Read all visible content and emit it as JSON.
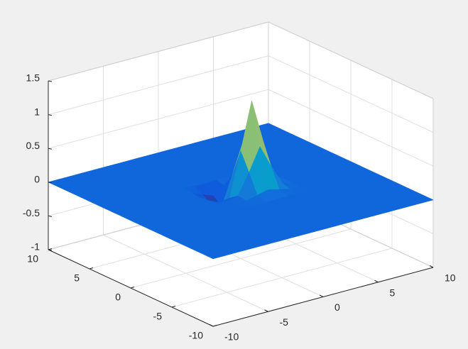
{
  "chart_data": {
    "type": "mesh",
    "x": [
      -10,
      -9,
      -8,
      -7,
      -6,
      -5,
      -4,
      -3,
      -2,
      -1,
      0,
      1,
      2,
      3,
      4,
      5,
      6,
      7,
      8,
      9,
      10
    ],
    "y": [
      -10,
      -9,
      -8,
      -7,
      -6,
      -5,
      -4,
      -3,
      -2,
      -1,
      0,
      1,
      2,
      3,
      4,
      5,
      6,
      7,
      8,
      9,
      10
    ],
    "z": [
      [
        0,
        0,
        0,
        0,
        0,
        0,
        0,
        0,
        0,
        0,
        0,
        0,
        0,
        0,
        0,
        0,
        0,
        0,
        0,
        0,
        0
      ],
      [
        0,
        0,
        0,
        0,
        0,
        0,
        0,
        0,
        0,
        0,
        0,
        0,
        0,
        0,
        0,
        0,
        0,
        0,
        0,
        0,
        0
      ],
      [
        0,
        0,
        0,
        0,
        0,
        0,
        0,
        0,
        0,
        0,
        0,
        0,
        0,
        0,
        0,
        0,
        0,
        0,
        0,
        0,
        0
      ],
      [
        0,
        0,
        0,
        0,
        0,
        0,
        0,
        0,
        0,
        0,
        0,
        0,
        0,
        0,
        0,
        0,
        0,
        0,
        0,
        0,
        0
      ],
      [
        0,
        0,
        0,
        0,
        0,
        0,
        0,
        0,
        0,
        0,
        0,
        0,
        0,
        0,
        0,
        0,
        0,
        0,
        0,
        0,
        0
      ],
      [
        0,
        0,
        0,
        0,
        0,
        0,
        0,
        0,
        0,
        0,
        0,
        0,
        0,
        0,
        0,
        0,
        0,
        0,
        0,
        0,
        0
      ],
      [
        0,
        0,
        0,
        0,
        0,
        0,
        0,
        0,
        0,
        0,
        0,
        0,
        0,
        0,
        0,
        0,
        0,
        0,
        0,
        0,
        0
      ],
      [
        0,
        0,
        0,
        0,
        0,
        0,
        0,
        0,
        0,
        0,
        0,
        0,
        0,
        0,
        0,
        0,
        0,
        0,
        0,
        0,
        0
      ],
      [
        0,
        0,
        0,
        0,
        0,
        0,
        0,
        0,
        0,
        0.01,
        0.05,
        0.09,
        0.05,
        0.01,
        0,
        0,
        0,
        0,
        0,
        0,
        0
      ],
      [
        0,
        0,
        0,
        0,
        0,
        0,
        0,
        0,
        -0.01,
        0.03,
        0.33,
        0.67,
        0.34,
        0.05,
        0,
        0,
        0,
        0,
        0,
        0,
        0
      ],
      [
        0,
        0,
        0,
        0,
        0,
        0,
        0,
        -0.01,
        -0.08,
        -0.06,
        0.59,
        1.29,
        0.67,
        0.09,
        0,
        0,
        0,
        0,
        0,
        0,
        0
      ],
      [
        0,
        0,
        0,
        0,
        0,
        0,
        0,
        -0.02,
        -0.15,
        -0.25,
        0.19,
        0.65,
        0.34,
        0.05,
        0,
        0,
        0,
        0,
        0,
        0,
        0
      ],
      [
        0,
        0,
        0,
        0,
        0,
        0,
        0,
        -0.01,
        -0.08,
        -0.14,
        -0.03,
        0.08,
        0.05,
        0.01,
        0,
        0,
        0,
        0,
        0,
        0,
        0
      ],
      [
        0,
        0,
        0,
        0,
        0,
        0,
        0,
        0,
        -0.01,
        -0.02,
        -0.01,
        0,
        0,
        0,
        0,
        0,
        0,
        0,
        0,
        0,
        0
      ],
      [
        0,
        0,
        0,
        0,
        0,
        0,
        0,
        0,
        0,
        0,
        0,
        0,
        0,
        0,
        0,
        0,
        0,
        0,
        0,
        0,
        0
      ],
      [
        0,
        0,
        0,
        0,
        0,
        0,
        0,
        0,
        0,
        0,
        0,
        0,
        0,
        0,
        0,
        0,
        0,
        0,
        0,
        0,
        0
      ],
      [
        0,
        0,
        0,
        0,
        0,
        0,
        0,
        0,
        0,
        0,
        0,
        0,
        0,
        0,
        0,
        0,
        0,
        0,
        0,
        0,
        0
      ],
      [
        0,
        0,
        0,
        0,
        0,
        0,
        0,
        0,
        0,
        0,
        0,
        0,
        0,
        0,
        0,
        0,
        0,
        0,
        0,
        0,
        0
      ],
      [
        0,
        0,
        0,
        0,
        0,
        0,
        0,
        0,
        0,
        0,
        0,
        0,
        0,
        0,
        0,
        0,
        0,
        0,
        0,
        0,
        0
      ],
      [
        0,
        0,
        0,
        0,
        0,
        0,
        0,
        0,
        0,
        0,
        0,
        0,
        0,
        0,
        0,
        0,
        0,
        0,
        0,
        0,
        0
      ],
      [
        0,
        0,
        0,
        0,
        0,
        0,
        0,
        0,
        0,
        0,
        0,
        0,
        0,
        0,
        0,
        0,
        0,
        0,
        0,
        0,
        0
      ]
    ],
    "xlim": [
      -10,
      10
    ],
    "ylim": [
      -10,
      10
    ],
    "zlim": [
      -1,
      1.5
    ],
    "xticks": [
      -10,
      -5,
      0,
      5,
      10
    ],
    "yticks": [
      -10,
      -5,
      0,
      5,
      10
    ],
    "zticks": [
      -1,
      -0.5,
      0,
      0.5,
      1,
      1.5
    ],
    "grid": true,
    "colormap": [
      "#352a87",
      "#0f5cdd",
      "#1481d6",
      "#06a4ca",
      "#2eb7a4",
      "#87bf77",
      "#d1bb59",
      "#fec832",
      "#f9fb0e"
    ]
  }
}
